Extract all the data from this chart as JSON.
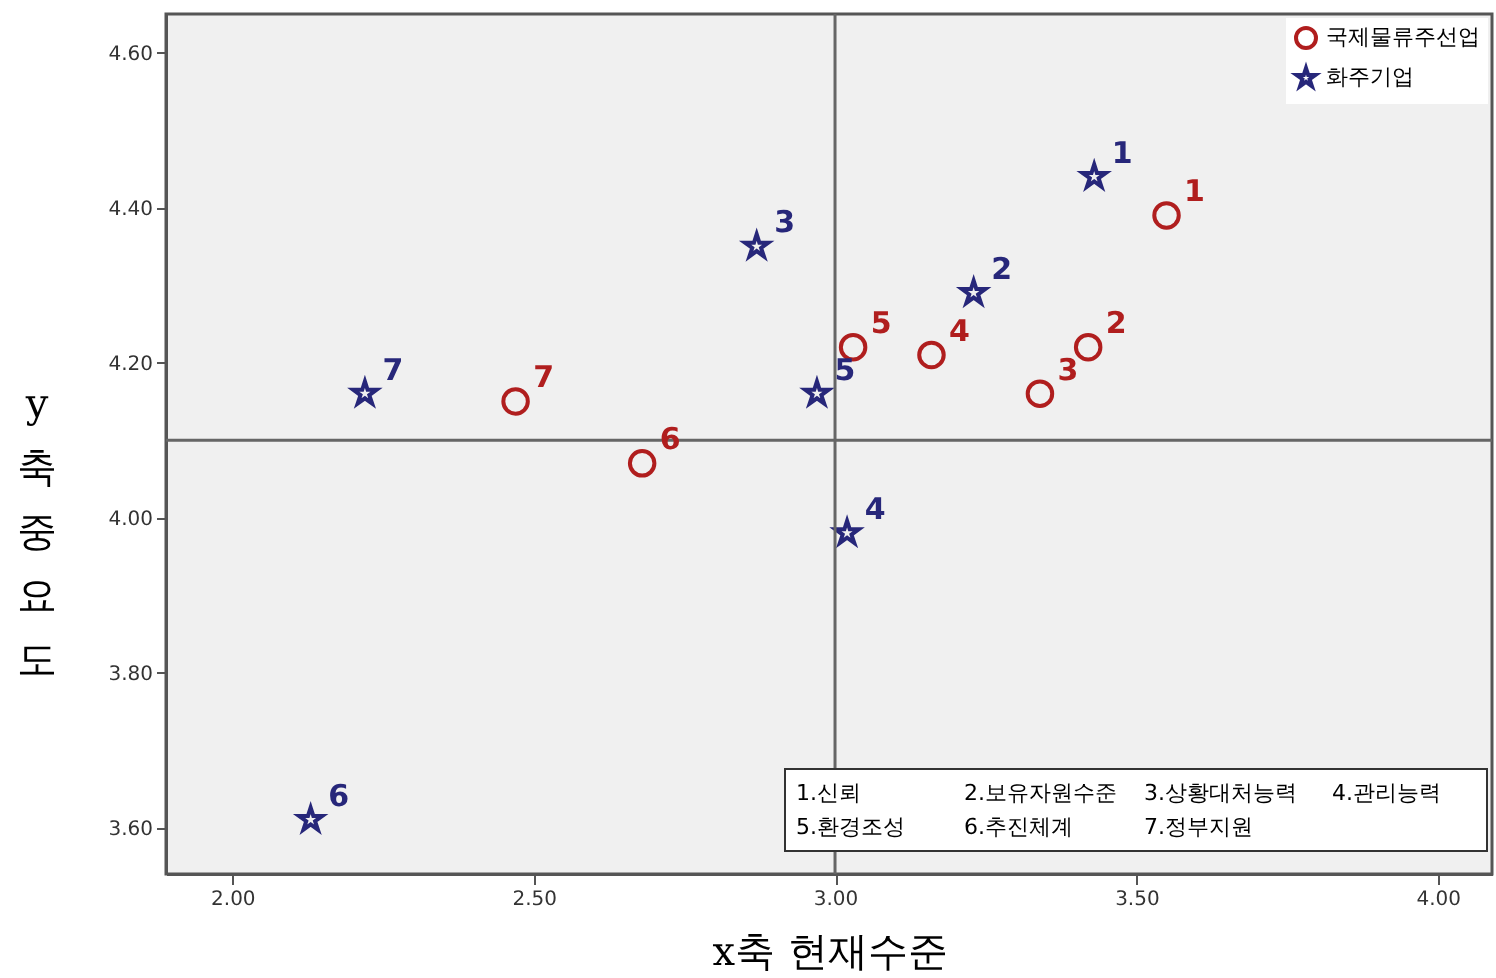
{
  "chart_data": {
    "type": "scatter",
    "xlabel": "x축 현재수준",
    "ylabel": "y축 중요도",
    "xlim": [
      1.89,
      4.09
    ],
    "ylim": [
      3.54,
      4.65
    ],
    "xticks": [
      {
        "value": 2,
        "label": "2.00"
      },
      {
        "value": 2.5,
        "label": "2.50"
      },
      {
        "value": 3,
        "label": "3.00"
      },
      {
        "value": 3.5,
        "label": "3.50"
      },
      {
        "value": 4,
        "label": "4.00"
      }
    ],
    "yticks": [
      {
        "value": 3.6,
        "label": "3.60"
      },
      {
        "value": 3.8,
        "label": "3.80"
      },
      {
        "value": 4,
        "label": "4.00"
      },
      {
        "value": 4.2,
        "label": "4.20"
      },
      {
        "value": 4.4,
        "label": "4.40"
      },
      {
        "value": 4.6,
        "label": "4.60"
      }
    ],
    "series": [
      {
        "name": "국제물류주선업",
        "color": "#b01e1e",
        "marker": "circle",
        "x": [
          3.55,
          3.42,
          3.34,
          3.16,
          3.03,
          2.68,
          2.47
        ],
        "values": [
          4.39,
          4.22,
          4.16,
          4.21,
          4.22,
          4.07,
          4.15
        ]
      },
      {
        "name": "화주기업",
        "color": "#27277a",
        "marker": "star",
        "x": [
          3.43,
          3.23,
          2.87,
          3.02,
          2.97,
          2.13,
          2.22
        ],
        "values": [
          4.44,
          4.29,
          4.35,
          3.98,
          4.16,
          3.61,
          4.16
        ]
      }
    ],
    "ref_lines": [
      {
        "axis": "x",
        "value": 3
      },
      {
        "axis": "y",
        "value": 4.1
      }
    ],
    "annotations": [
      {
        "text": "1",
        "x": 3.55,
        "y": 4.39
      },
      {
        "text": "2",
        "x": 3.42,
        "y": 4.22
      },
      {
        "text": "3",
        "x": 3.34,
        "y": 4.16
      },
      {
        "text": "4",
        "x": 3.16,
        "y": 4.21
      },
      {
        "text": "5",
        "x": 3.03,
        "y": 4.22
      },
      {
        "text": "6",
        "x": 2.68,
        "y": 4.07
      },
      {
        "text": "7",
        "x": 2.47,
        "y": 4.15
      },
      {
        "text": "1",
        "x": 3.43,
        "y": 4.44
      },
      {
        "text": "2",
        "x": 3.23,
        "y": 4.29
      },
      {
        "text": "3",
        "x": 2.87,
        "y": 4.35
      },
      {
        "text": "4",
        "x": 3.02,
        "y": 3.98
      },
      {
        "text": "5",
        "x": 2.97,
        "y": 4.16
      },
      {
        "text": "6",
        "x": 2.13,
        "y": 3.61
      },
      {
        "text": "7",
        "x": 2.22,
        "y": 4.16
      },
      "1.신뢰",
      "2.보유자원수준",
      "3.상황대처능력",
      "4.관리능력",
      "5.환경조성",
      "6.추진체계",
      "7.정부지원"
    ],
    "grid": false,
    "legend": "top right"
  }
}
